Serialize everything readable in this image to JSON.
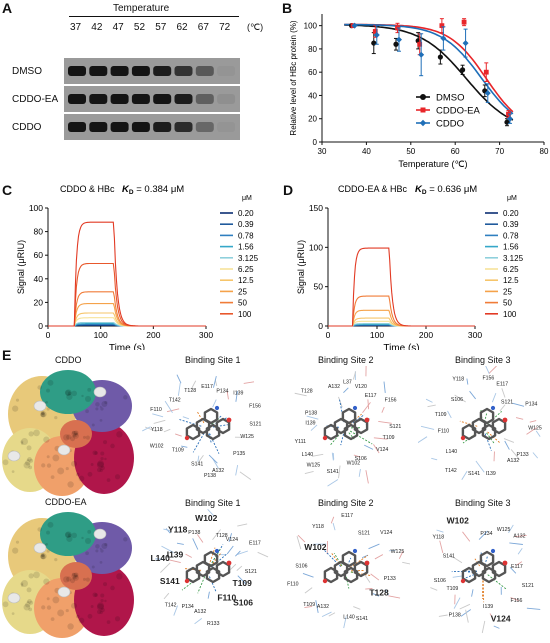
{
  "panels": {
    "A": "A",
    "B": "B",
    "C": "C",
    "D": "D",
    "E": "E"
  },
  "panel_a": {
    "header": "Temperature",
    "temps": [
      "37",
      "42",
      "47",
      "52",
      "57",
      "62",
      "67",
      "72"
    ],
    "unit": "(℃)",
    "rows": [
      "DMSO",
      "CDDO-EA",
      "CDDO"
    ]
  },
  "chart_data": [
    {
      "type": "line",
      "title": "",
      "xlabel": "Temperature (℃)",
      "ylabel": "Relative level of HBc protein (%)",
      "xlim": [
        30,
        80
      ],
      "ylim": [
        0,
        110
      ],
      "xticks": [
        "30",
        "40",
        "50",
        "60",
        "70",
        "80"
      ],
      "yticks": [
        "0",
        "20",
        "40",
        "60",
        "80",
        "100"
      ],
      "legend_position": "middle-right",
      "series": [
        {
          "name": "DMSO",
          "color": "#111111",
          "marker": "circle",
          "x": [
            37,
            42,
            47,
            52,
            57,
            62,
            67,
            72
          ],
          "y": [
            100,
            85,
            84,
            87,
            73,
            62,
            44,
            17
          ],
          "err": [
            0,
            9,
            5,
            7,
            6,
            4,
            5,
            3
          ]
        },
        {
          "name": "CDDO-EA",
          "color": "#e8262a",
          "marker": "square",
          "x": [
            37,
            42,
            47,
            52,
            57,
            62,
            67,
            72
          ],
          "y": [
            100,
            95,
            98,
            84,
            100,
            103,
            60,
            24
          ],
          "err": [
            0,
            5,
            4,
            9,
            6,
            3,
            8,
            3
          ]
        },
        {
          "name": "CDDO",
          "color": "#1f6fb8",
          "marker": "diamond",
          "x": [
            37,
            42,
            47,
            52,
            57,
            62,
            67,
            72
          ],
          "y": [
            100,
            92,
            88,
            75,
            89,
            85,
            42,
            20
          ],
          "err": [
            0,
            8,
            10,
            18,
            10,
            12,
            8,
            4
          ]
        }
      ],
      "fit_lines": [
        {
          "color": "#111111",
          "tm": 62.5,
          "slope": 5.2
        },
        {
          "color": "#e8262a",
          "tm": 67.0,
          "slope": 4.2
        },
        {
          "color": "#1f6fb8",
          "tm": 66.0,
          "slope": 4.5
        }
      ]
    },
    {
      "type": "line",
      "title": "CDDO & HBc",
      "kd_label": "K",
      "kd_sub": "D",
      "kd_value": "= 0.384 μM",
      "xlabel": "Time (s)",
      "ylabel": "Signal (μRIU)",
      "xlim": [
        0,
        300
      ],
      "ylim": [
        0,
        100
      ],
      "xticks": [
        "0",
        "100",
        "200",
        "300"
      ],
      "yticks": [
        "0",
        "20",
        "40",
        "60",
        "80",
        "100"
      ],
      "legend_unit": "μM",
      "legend_position": "right",
      "assoc_start": 50,
      "dissoc_start": 125,
      "series": [
        {
          "name": "0.20",
          "color": "#0b2e73",
          "plateau": 0.5
        },
        {
          "name": "0.39",
          "color": "#1f5a9c",
          "plateau": 1
        },
        {
          "name": "0.78",
          "color": "#2f7fc0",
          "plateau": 1.5
        },
        {
          "name": "1.56",
          "color": "#35a7c9",
          "plateau": 2
        },
        {
          "name": "3.125",
          "color": "#8fd0dc",
          "plateau": 3
        },
        {
          "name": "6.25",
          "color": "#f7e39a",
          "plateau": 7
        },
        {
          "name": "12.5",
          "color": "#f6c56a",
          "plateau": 11
        },
        {
          "name": "25",
          "color": "#f5a24a",
          "plateau": 19
        },
        {
          "name": "50",
          "color": "#f07c38",
          "plateau": 29
        },
        {
          "name": "100",
          "color": "#e8582c",
          "plateau": 53
        },
        {
          "name": "",
          "color": "#e23a24",
          "plateau": 88
        }
      ]
    },
    {
      "type": "line",
      "title": "CDDO-EA & HBc",
      "kd_label": "K",
      "kd_sub": "D",
      "kd_value": "= 0.636 μM",
      "xlabel": "Time (s)",
      "ylabel": "Signal (μRIU)",
      "xlim": [
        0,
        300
      ],
      "ylim": [
        0,
        150
      ],
      "xticks": [
        "0",
        "100",
        "200",
        "300"
      ],
      "yticks": [
        "0",
        "50",
        "100",
        "150"
      ],
      "legend_unit": "μM",
      "legend_position": "right",
      "assoc_start": 50,
      "dissoc_start": 125,
      "series": [
        {
          "name": "0.20",
          "color": "#0b2e73",
          "plateau": 0.5
        },
        {
          "name": "0.39",
          "color": "#1f5a9c",
          "plateau": 1
        },
        {
          "name": "0.78",
          "color": "#2f7fc0",
          "plateau": 1.5
        },
        {
          "name": "1.56",
          "color": "#35a7c9",
          "plateau": 2
        },
        {
          "name": "3.125",
          "color": "#8fd0dc",
          "plateau": 3
        },
        {
          "name": "6.25",
          "color": "#f7e39a",
          "plateau": 6
        },
        {
          "name": "12.5",
          "color": "#f6c56a",
          "plateau": 10
        },
        {
          "name": "25",
          "color": "#f5a24a",
          "plateau": 20
        },
        {
          "name": "50",
          "color": "#f07c38",
          "plateau": 38
        },
        {
          "name": "100",
          "color": "#e23a24",
          "plateau": 99
        }
      ]
    }
  ],
  "panel_e": {
    "row1_compound": "CDDO",
    "row2_compound": "CDDO-EA",
    "site_titles": [
      "Binding Site 1",
      "Binding Site 2",
      "Binding Site 3"
    ],
    "protein_colors": [
      "#e8c97a",
      "#f0a06a",
      "#b0164a",
      "#6f5aa8",
      "#2f9d86",
      "#e6d98a",
      "#d87050"
    ],
    "r1s1": [
      "E117",
      "P134",
      "I139",
      "F156",
      "S121",
      "W125",
      "P135",
      "A132",
      "P138",
      "S141",
      "T109",
      "W102",
      "Y118",
      "F110",
      "T142",
      "T128"
    ],
    "r1s2": [
      "L37",
      "V120",
      "E117",
      "F156",
      "S121",
      "T109",
      "V124",
      "S106",
      "W102",
      "S141",
      "W125",
      "L140",
      "Y111",
      "I139",
      "P138",
      "T128",
      "A132"
    ],
    "r1s3": [
      "F156",
      "E117",
      "S121",
      "P134",
      "W125",
      "P133",
      "A132",
      "I139",
      "S141",
      "T142",
      "L140",
      "F110",
      "T109",
      "S106",
      "Y118"
    ],
    "r2s1": [
      "W102",
      "T128",
      "V124",
      "E117",
      "S121",
      "T109",
      "S106",
      "F110",
      "R133",
      "A132",
      "P134",
      "T142",
      "S141",
      "L140",
      "I139",
      "Y118",
      "P138"
    ],
    "r2s2": [
      "E117",
      "S121",
      "V124",
      "W125",
      "P133",
      "T128",
      "S141",
      "L140",
      "A132",
      "T109",
      "F110",
      "S106",
      "W102",
      "Y118"
    ],
    "r2s3": [
      "P134",
      "W125",
      "A132",
      "E117",
      "S121",
      "F156",
      "V124",
      "I139",
      "P138",
      "T109",
      "S106",
      "S141",
      "Y118",
      "W102"
    ]
  }
}
